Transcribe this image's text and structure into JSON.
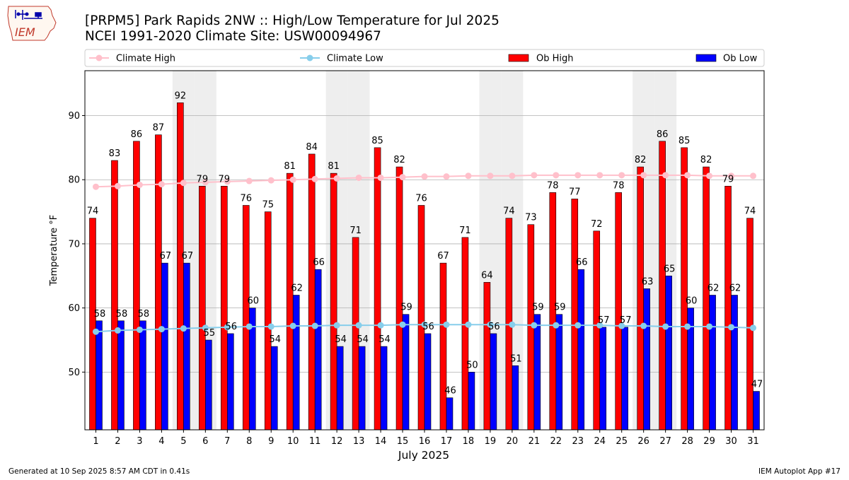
{
  "header": {
    "logo_text": "IEM",
    "title_line1": "[PRPM5] Park Rapids 2NW :: High/Low Temperature for Jul 2025",
    "title_line2": "NCEI 1991-2020 Climate Site: USW00094967"
  },
  "footer": {
    "generated": "Generated at 10 Sep 2025 8:57 AM CDT in 0.41s",
    "app": "IEM Autoplot App #17"
  },
  "colors": {
    "ob_high": "#ff0000",
    "ob_low": "#0000ff",
    "climate_high": "#ffc0cb",
    "climate_low": "#87ceeb",
    "weekend_band": "#eeeeee",
    "grid": "#b0b0b0"
  },
  "chart_data": {
    "type": "bar",
    "xlabel": "July 2025",
    "ylabel": "Temperature °F",
    "ylim": [
      41,
      97
    ],
    "yticks": [
      50,
      60,
      70,
      80,
      90
    ],
    "grid": "horizontal",
    "legend_placement": "top",
    "shaded_weekend_days": [
      5,
      6,
      12,
      13,
      19,
      20,
      26,
      27
    ],
    "categories": [
      "1",
      "2",
      "3",
      "4",
      "5",
      "6",
      "7",
      "8",
      "9",
      "10",
      "11",
      "12",
      "13",
      "14",
      "15",
      "16",
      "17",
      "18",
      "19",
      "20",
      "21",
      "22",
      "23",
      "24",
      "25",
      "26",
      "27",
      "28",
      "29",
      "30",
      "31"
    ],
    "series": [
      {
        "name": "Climate High",
        "kind": "line",
        "values": [
          78.9,
          79.0,
          79.2,
          79.3,
          79.5,
          79.6,
          79.7,
          79.8,
          79.9,
          80.0,
          80.1,
          80.2,
          80.3,
          80.3,
          80.4,
          80.5,
          80.5,
          80.6,
          80.6,
          80.6,
          80.7,
          80.7,
          80.7,
          80.7,
          80.7,
          80.7,
          80.7,
          80.7,
          80.6,
          80.6,
          80.6
        ]
      },
      {
        "name": "Climate Low",
        "kind": "line",
        "values": [
          56.3,
          56.5,
          56.6,
          56.7,
          56.8,
          56.9,
          57.0,
          57.1,
          57.1,
          57.2,
          57.2,
          57.3,
          57.3,
          57.3,
          57.4,
          57.4,
          57.4,
          57.4,
          57.4,
          57.4,
          57.3,
          57.3,
          57.3,
          57.3,
          57.2,
          57.2,
          57.1,
          57.1,
          57.1,
          57.0,
          56.9
        ]
      },
      {
        "name": "Ob High",
        "kind": "bar",
        "values": [
          74,
          83,
          86,
          87,
          92,
          79,
          79,
          76,
          75,
          81,
          84,
          81,
          71,
          85,
          82,
          76,
          67,
          71,
          64,
          74,
          73,
          78,
          77,
          72,
          78,
          82,
          86,
          85,
          82,
          79,
          74
        ]
      },
      {
        "name": "Ob Low",
        "kind": "bar",
        "values": [
          58,
          58,
          58,
          67,
          67,
          55,
          56,
          60,
          54,
          62,
          66,
          54,
          54,
          54,
          59,
          56,
          46,
          50,
          56,
          51,
          59,
          59,
          66,
          57,
          57,
          63,
          65,
          60,
          62,
          62,
          47
        ]
      }
    ]
  }
}
